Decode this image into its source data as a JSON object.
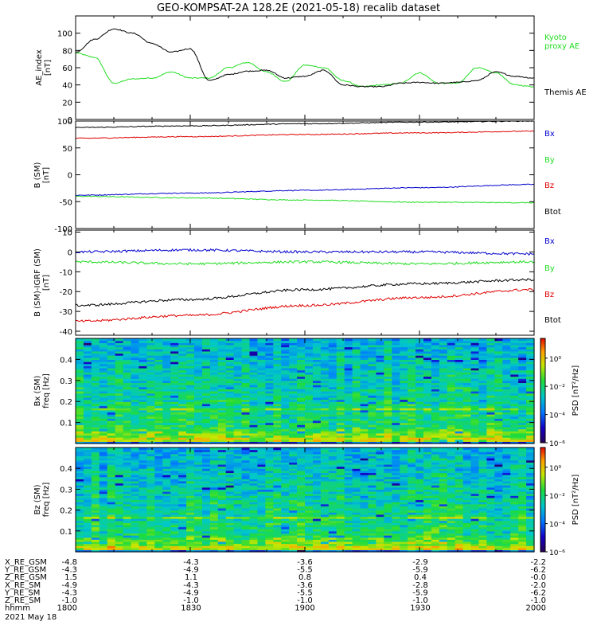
{
  "title": "GEO-KOMPSAT-2A 128.2E (2021-05-18) recalib dataset",
  "colors": {
    "black": "#000000",
    "red": "#e00000",
    "green": "#22dd22",
    "blue": "#0000cc"
  },
  "x_ticks": [
    1800,
    1830,
    1900,
    1930,
    2000
  ],
  "panels": {
    "ae": {
      "ylabel_lines": [
        "AE_index",
        "[nT]"
      ],
      "yticks": [
        "0",
        "20",
        "40",
        "60",
        "80",
        "100"
      ],
      "legend": [
        {
          "text": "Kyoto",
          "color": "green"
        },
        {
          "text": "proxy AE",
          "color": "green"
        },
        {
          "text": "Themis AE",
          "color": "black"
        }
      ]
    },
    "b_sm": {
      "ylabel_lines": [
        "B (SM)",
        "[nT]"
      ],
      "yticks": [
        "-100",
        "-50",
        "0",
        "50",
        "100"
      ],
      "legend": [
        {
          "text": "Bx",
          "color": "blue"
        },
        {
          "text": "By",
          "color": "green"
        },
        {
          "text": "Bz",
          "color": "red"
        },
        {
          "text": "Btot",
          "color": "black"
        }
      ]
    },
    "b_igrf": {
      "ylabel_lines": [
        "B (SM)-IGRF (SM)",
        "[nT]"
      ],
      "yticks": [
        "-40",
        "-30",
        "-20",
        "-10",
        "0",
        "10"
      ],
      "legend": [
        {
          "text": "Bx",
          "color": "blue"
        },
        {
          "text": "By",
          "color": "green"
        },
        {
          "text": "Bz",
          "color": "red"
        },
        {
          "text": "Btot",
          "color": "black"
        }
      ]
    },
    "spec_bx": {
      "ylabel_lines": [
        "Bx (SM)",
        "freq [Hz]"
      ],
      "yticks": [
        "0.1",
        "0.2",
        "0.3",
        "0.4"
      ],
      "cbar_label": "PSD [nT²/Hz]",
      "cbar_ticks": [
        "10⁰",
        "10⁻²",
        "10⁻⁴",
        "10⁻⁶"
      ]
    },
    "spec_bz": {
      "ylabel_lines": [
        "Bz (SM)",
        "freq [Hz]"
      ],
      "yticks": [
        "0.1",
        "0.2",
        "0.3",
        "0.4"
      ],
      "cbar_label": "PSD [nT²/Hz]",
      "cbar_ticks": [
        "10⁰",
        "10⁻²",
        "10⁻⁴",
        "10⁻⁶"
      ]
    }
  },
  "ephemeris": {
    "rows": [
      {
        "label": "X_RE_GSM",
        "values": [
          "-4.8",
          "-4.3",
          "-3.6",
          "-2.9",
          "-2.2"
        ]
      },
      {
        "label": "Y_RE_GSM",
        "values": [
          "-4.3",
          "-4.9",
          "-5.5",
          "-5.9",
          "-6.2"
        ]
      },
      {
        "label": "Z_RE_GSM",
        "values": [
          "1.5",
          "1.1",
          "0.8",
          "0.4",
          "-0.0"
        ]
      },
      {
        "label": "X_RE_SM",
        "values": [
          "-4.9",
          "-4.3",
          "-3.6",
          "-2.8",
          "-2.0"
        ]
      },
      {
        "label": "Y_RE_SM",
        "values": [
          "-4.3",
          "-4.9",
          "-5.5",
          "-5.9",
          "-6.2"
        ]
      },
      {
        "label": "Z_RE_SM",
        "values": [
          "-1.0",
          "-1.0",
          "-1.0",
          "-1.0",
          "-1.0"
        ]
      },
      {
        "label": "hhmm",
        "values": [
          "1800",
          "1830",
          "1900",
          "1930",
          "2000"
        ]
      }
    ],
    "date": "2021 May 18"
  },
  "chart_data": [
    {
      "type": "line",
      "xlabel": "hhmm",
      "ylabel": "AE_index [nT]",
      "ylim": [
        0,
        120
      ],
      "x": [
        1800,
        1805,
        1810,
        1815,
        1820,
        1825,
        1830,
        1835,
        1840,
        1845,
        1850,
        1855,
        1900,
        1905,
        1910,
        1915,
        1920,
        1925,
        1930,
        1935,
        1940,
        1945,
        1950,
        1955,
        2000
      ],
      "series": [
        {
          "name": "Kyoto proxy AE",
          "color": "green",
          "values": [
            77,
            72,
            42,
            47,
            48,
            55,
            48,
            48,
            60,
            66,
            55,
            44,
            63,
            60,
            45,
            38,
            40,
            42,
            54,
            42,
            42,
            60,
            54,
            40,
            38
          ]
        },
        {
          "name": "Themis AE",
          "color": "black",
          "values": [
            78,
            93,
            105,
            100,
            88,
            78,
            82,
            45,
            52,
            56,
            57,
            48,
            50,
            57,
            40,
            38,
            38,
            42,
            43,
            42,
            43,
            45,
            55,
            50,
            48
          ]
        }
      ]
    },
    {
      "type": "line",
      "xlabel": "hhmm",
      "ylabel": "B (SM) [nT]",
      "ylim": [
        -100,
        100
      ],
      "x": [
        1800,
        1830,
        1900,
        1930,
        2000
      ],
      "series": [
        {
          "name": "Bx",
          "color": "blue",
          "values": [
            -38,
            -34,
            -29,
            -24,
            -18
          ]
        },
        {
          "name": "By",
          "color": "green",
          "values": [
            -40,
            -43,
            -47,
            -51,
            -52
          ]
        },
        {
          "name": "Bz",
          "color": "red",
          "values": [
            68,
            71,
            75,
            78,
            81
          ]
        },
        {
          "name": "Btot",
          "color": "black",
          "values": [
            88,
            91,
            95,
            98,
            100
          ]
        }
      ]
    },
    {
      "type": "line",
      "xlabel": "hhmm",
      "ylabel": "B (SM)-IGRF (SM) [nT]",
      "ylim": [
        -42,
        11
      ],
      "x": [
        1800,
        1830,
        1900,
        1930,
        2000
      ],
      "series": [
        {
          "name": "Bx",
          "color": "blue",
          "values": [
            0,
            1,
            0,
            0,
            -1
          ]
        },
        {
          "name": "By",
          "color": "green",
          "values": [
            -5,
            -6,
            -5,
            -6,
            -5
          ]
        },
        {
          "name": "Bz",
          "color": "red",
          "values": [
            -35,
            -32,
            -27,
            -23,
            -19
          ]
        },
        {
          "name": "Btot",
          "color": "black",
          "values": [
            -27,
            -24,
            -19,
            -16,
            -14
          ]
        }
      ]
    },
    {
      "type": "heatmap",
      "ylabel": "Bx (SM) freq [Hz]",
      "ylim": [
        0,
        0.5
      ],
      "colorbar": "PSD [nT²/Hz]",
      "colorbar_range_log10": [
        -6,
        1.4
      ],
      "band_features_hz": [
        0.02,
        0.06,
        0.16,
        0.17
      ]
    },
    {
      "type": "heatmap",
      "ylabel": "Bz (SM) freq [Hz]",
      "ylim": [
        0,
        0.5
      ],
      "colorbar": "PSD [nT²/Hz]",
      "colorbar_range_log10": [
        -6,
        1.4
      ],
      "band_features_hz": [
        0.02,
        0.06,
        0.16,
        0.17
      ]
    }
  ]
}
